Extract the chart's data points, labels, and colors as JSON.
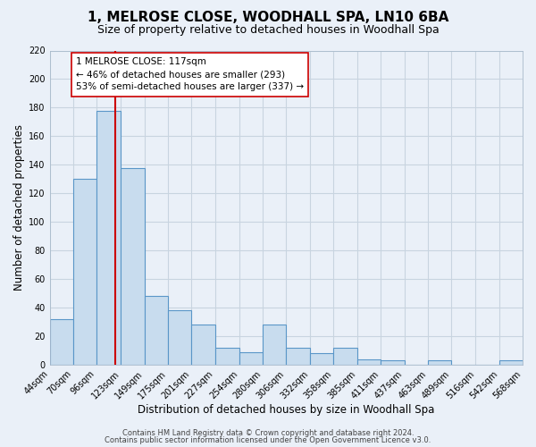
{
  "title": "1, MELROSE CLOSE, WOODHALL SPA, LN10 6BA",
  "subtitle": "Size of property relative to detached houses in Woodhall Spa",
  "xlabel": "Distribution of detached houses by size in Woodhall Spa",
  "ylabel": "Number of detached properties",
  "bin_edges": [
    44,
    70,
    96,
    123,
    149,
    175,
    201,
    227,
    254,
    280,
    306,
    332,
    358,
    385,
    411,
    437,
    463,
    489,
    516,
    542,
    568
  ],
  "bin_counts": [
    32,
    130,
    178,
    138,
    48,
    38,
    28,
    12,
    9,
    28,
    12,
    8,
    12,
    4,
    3,
    0,
    3,
    0,
    0,
    3
  ],
  "bar_color": "#c8dcee",
  "bar_edge_color": "#5a96c8",
  "property_size": 117,
  "vline_color": "#cc0000",
  "annotation_text": "1 MELROSE CLOSE: 117sqm\n← 46% of detached houses are smaller (293)\n53% of semi-detached houses are larger (337) →",
  "annotation_box_color": "#ffffff",
  "annotation_box_edge": "#cc0000",
  "ylim": [
    0,
    220
  ],
  "yticks": [
    0,
    20,
    40,
    60,
    80,
    100,
    120,
    140,
    160,
    180,
    200,
    220
  ],
  "bg_color": "#eaf0f8",
  "grid_color": "#c8d4e0",
  "footer_line1": "Contains HM Land Registry data © Crown copyright and database right 2024.",
  "footer_line2": "Contains public sector information licensed under the Open Government Licence v3.0.",
  "title_fontsize": 11,
  "subtitle_fontsize": 9,
  "axis_label_fontsize": 8.5,
  "tick_fontsize": 7,
  "annotation_fontsize": 7.5,
  "footer_fontsize": 6
}
